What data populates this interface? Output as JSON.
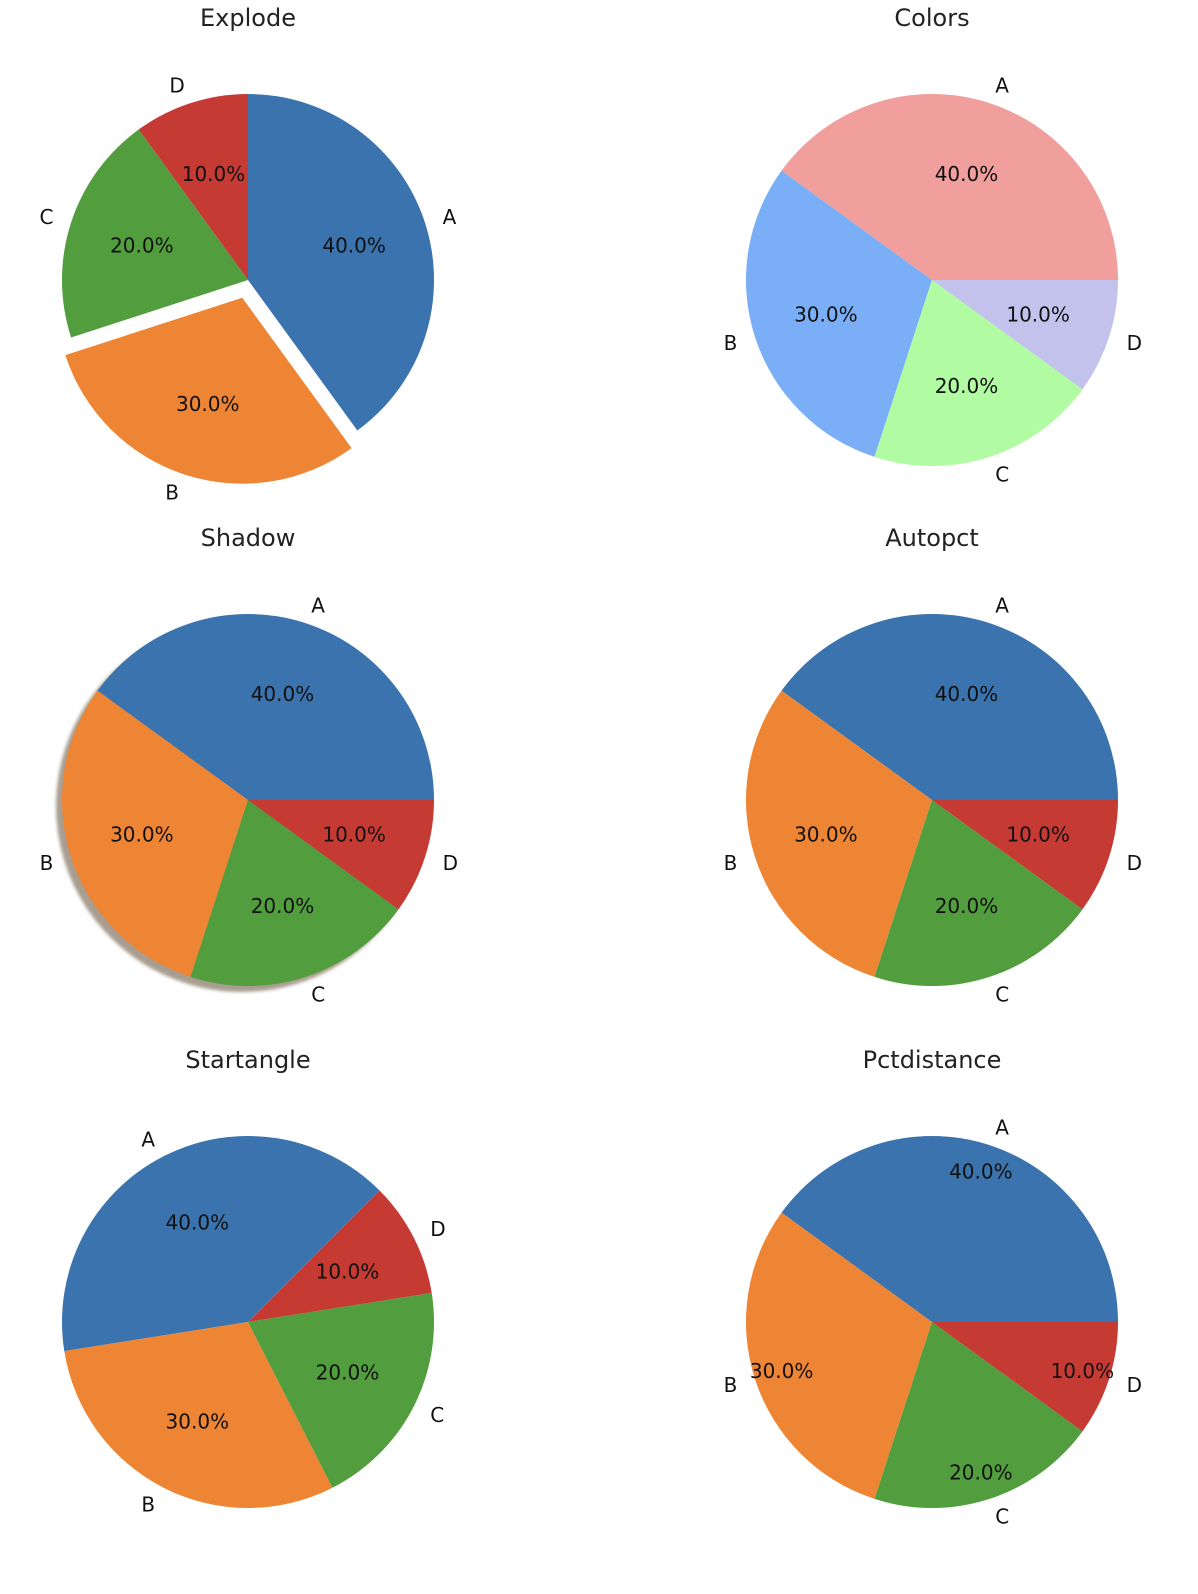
{
  "figure": {
    "palette": {
      "default": [
        "#3a73ad",
        "#ee8534",
        "#529d3d",
        "#c53a33"
      ],
      "shadow": "#7a6a55"
    }
  },
  "chart_data": [
    {
      "type": "pie",
      "title": "Explode",
      "labels": [
        "A",
        "B",
        "C",
        "D"
      ],
      "values": [
        40,
        30,
        20,
        10
      ],
      "percent_labels": [
        "40.0%",
        "30.0%",
        "20.0%",
        "10.0%"
      ],
      "colors": [
        "#3a73ad",
        "#ee8534",
        "#529d3d",
        "#c53a33"
      ],
      "start_angle_deg": 90,
      "direction": "clockwise",
      "explode": [
        0,
        0.1,
        0,
        0
      ],
      "shadow": false,
      "pct_distance": 0.6
    },
    {
      "type": "pie",
      "title": "Colors",
      "labels": [
        "A",
        "B",
        "C",
        "D"
      ],
      "values": [
        40,
        30,
        20,
        10
      ],
      "percent_labels": [
        "40.0%",
        "30.0%",
        "20.0%",
        "10.0%"
      ],
      "colors": [
        "#f19f9c",
        "#7aaff8",
        "#b1fba3",
        "#c3c2ec"
      ],
      "start_angle_deg": 0,
      "direction": "counterclockwise",
      "explode": [
        0,
        0,
        0,
        0
      ],
      "shadow": false,
      "pct_distance": 0.6
    },
    {
      "type": "pie",
      "title": "Shadow",
      "labels": [
        "A",
        "B",
        "C",
        "D"
      ],
      "values": [
        40,
        30,
        20,
        10
      ],
      "percent_labels": [
        "40.0%",
        "30.0%",
        "20.0%",
        "10.0%"
      ],
      "colors": [
        "#3a73ad",
        "#ee8534",
        "#529d3d",
        "#c53a33"
      ],
      "start_angle_deg": 0,
      "direction": "counterclockwise",
      "explode": [
        0,
        0,
        0,
        0
      ],
      "shadow": true,
      "pct_distance": 0.6
    },
    {
      "type": "pie",
      "title": "Autopct",
      "labels": [
        "A",
        "B",
        "C",
        "D"
      ],
      "values": [
        40,
        30,
        20,
        10
      ],
      "percent_labels": [
        "40.0%",
        "30.0%",
        "20.0%",
        "10.0%"
      ],
      "colors": [
        "#3a73ad",
        "#ee8534",
        "#529d3d",
        "#c53a33"
      ],
      "start_angle_deg": 0,
      "direction": "counterclockwise",
      "explode": [
        0,
        0,
        0,
        0
      ],
      "shadow": false,
      "pct_distance": 0.6
    },
    {
      "type": "pie",
      "title": "Startangle",
      "labels": [
        "A",
        "B",
        "C",
        "D"
      ],
      "values": [
        40,
        30,
        20,
        10
      ],
      "percent_labels": [
        "40.0%",
        "30.0%",
        "20.0%",
        "10.0%"
      ],
      "colors": [
        "#3a73ad",
        "#ee8534",
        "#529d3d",
        "#c53a33"
      ],
      "start_angle_deg": 45,
      "direction": "counterclockwise",
      "explode": [
        0,
        0,
        0,
        0
      ],
      "shadow": false,
      "pct_distance": 0.6
    },
    {
      "type": "pie",
      "title": "Pctdistance",
      "labels": [
        "A",
        "B",
        "C",
        "D"
      ],
      "values": [
        40,
        30,
        20,
        10
      ],
      "percent_labels": [
        "40.0%",
        "30.0%",
        "20.0%",
        "10.0%"
      ],
      "colors": [
        "#3a73ad",
        "#ee8534",
        "#529d3d",
        "#c53a33"
      ],
      "start_angle_deg": 0,
      "direction": "counterclockwise",
      "explode": [
        0,
        0,
        0,
        0
      ],
      "shadow": false,
      "pct_distance": 0.85
    }
  ]
}
